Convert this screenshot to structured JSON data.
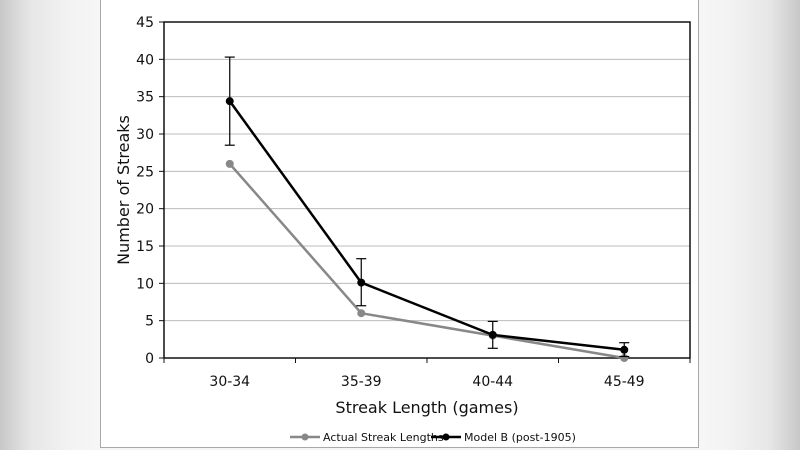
{
  "chart_data": {
    "type": "line",
    "title": "",
    "xlabel": "Streak Length (games)",
    "ylabel": "Number of Streaks",
    "categories": [
      "30-34",
      "35-39",
      "40-44",
      "45-49"
    ],
    "ylim": [
      0,
      45
    ],
    "yticks": [
      0,
      5,
      10,
      15,
      20,
      25,
      30,
      35,
      40,
      45
    ],
    "grid": true,
    "legend_position": "bottom",
    "series": [
      {
        "name": "Actual Streak Lengths",
        "color": "#888888",
        "values": [
          26,
          6,
          3,
          0
        ]
      },
      {
        "name": "Model B (post-1905)",
        "color": "#000000",
        "values": [
          34.4,
          10.1,
          3.1,
          1.1
        ],
        "error_low": [
          28.5,
          7.0,
          1.3,
          0.2
        ],
        "error_high": [
          40.3,
          13.3,
          4.9,
          2.05
        ]
      }
    ]
  },
  "axis": {
    "xlabel": "Streak Length (games)",
    "ylabel": "Number of Streaks",
    "yticks": [
      "0",
      "5",
      "10",
      "15",
      "20",
      "25",
      "30",
      "35",
      "40",
      "45"
    ],
    "xticks": [
      "30-34",
      "35-39",
      "40-44",
      "45-49"
    ]
  },
  "legend": {
    "items": [
      {
        "label": "Actual Streak Lengths",
        "color": "#888888"
      },
      {
        "label": "Model B (post-1905)",
        "color": "#000000"
      }
    ]
  }
}
